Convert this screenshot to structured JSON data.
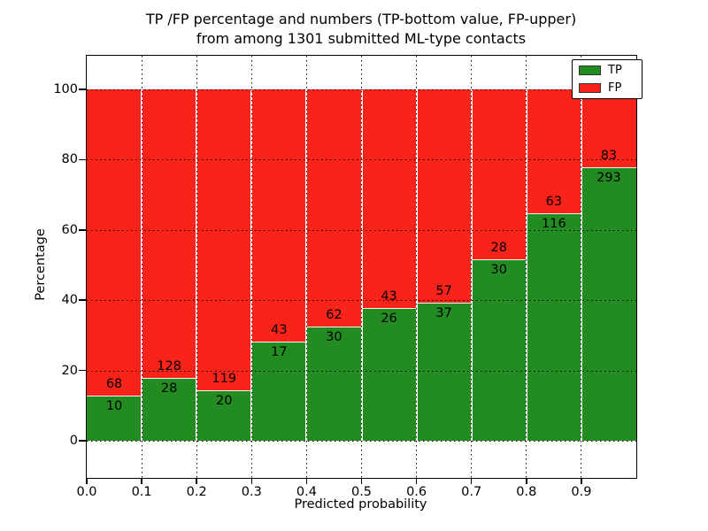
{
  "title": {
    "line1": "TP /FP percentage and numbers (TP-bottom value, FP-upper)",
    "line2": "from among 1301 submitted ML-type contacts"
  },
  "axes": {
    "ylabel": "Percentage",
    "xlabel": "Predicted probability",
    "yticks": [
      "0",
      "20",
      "40",
      "60",
      "80",
      "100"
    ],
    "ytick_values": [
      0,
      20,
      40,
      60,
      80,
      100
    ],
    "xticks": [
      "0.0",
      "0.1",
      "0.2",
      "0.3",
      "0.4",
      "0.5",
      "0.6",
      "0.7",
      "0.8",
      "0.9"
    ],
    "xtick_values": [
      0.0,
      0.1,
      0.2,
      0.3,
      0.4,
      0.5,
      0.6,
      0.7,
      0.8,
      0.9
    ]
  },
  "legend": {
    "items": [
      {
        "label": "TP",
        "color": "#228b22"
      },
      {
        "label": "FP",
        "color": "#fa231a"
      }
    ]
  },
  "colors": {
    "tp_green": "#228b22",
    "fp_red": "#fa231a",
    "grid": "#000000",
    "background": "#ffffff"
  },
  "chart_data": {
    "type": "bar",
    "stacked": true,
    "normalized": "percent",
    "title": "TP /FP percentage and numbers (TP-bottom value, FP-upper) from among 1301 submitted ML-type contacts",
    "xlabel": "Predicted probability",
    "ylabel": "Percentage",
    "total_contacts": 1301,
    "bin_edges": [
      0.0,
      0.1,
      0.2,
      0.3,
      0.4,
      0.5,
      0.6,
      0.7,
      0.8,
      0.9,
      1.0
    ],
    "categories": [
      "0.0-0.1",
      "0.1-0.2",
      "0.2-0.3",
      "0.3-0.4",
      "0.4-0.5",
      "0.5-0.6",
      "0.6-0.7",
      "0.7-0.8",
      "0.8-0.9",
      "0.9-1.0"
    ],
    "series": [
      {
        "name": "TP",
        "color": "#228b22",
        "counts": [
          10,
          28,
          20,
          17,
          30,
          26,
          37,
          30,
          116,
          293
        ],
        "percent": [
          12.82,
          17.95,
          14.39,
          28.33,
          32.61,
          37.68,
          39.36,
          51.72,
          64.8,
          77.93
        ]
      },
      {
        "name": "FP",
        "color": "#fa231a",
        "counts": [
          68,
          128,
          119,
          43,
          62,
          43,
          57,
          28,
          63,
          83
        ],
        "percent": [
          87.18,
          82.05,
          85.61,
          71.67,
          67.39,
          62.32,
          60.64,
          48.28,
          35.2,
          22.07
        ]
      }
    ],
    "ylim": [
      -10.6,
      109.6
    ],
    "xlim": [
      0.0,
      1.0
    ],
    "grid": true,
    "grid_style": "dotted",
    "legend_position": "upper right"
  }
}
